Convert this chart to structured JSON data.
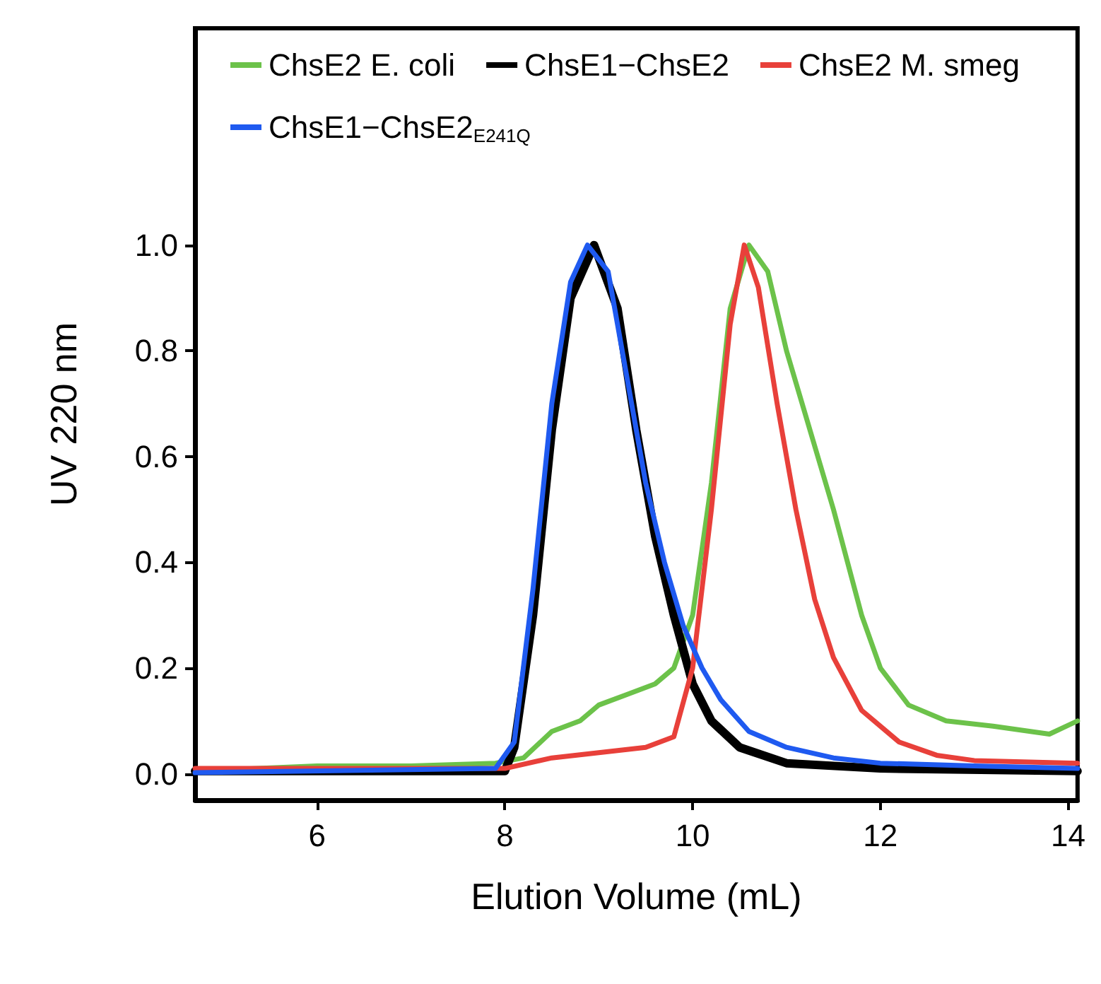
{
  "chart_data": {
    "type": "line",
    "xlabel": "Elution Volume (mL)",
    "ylabel": "UV 220 nm",
    "xlim": [
      4.7,
      14.1
    ],
    "ylim": [
      -0.05,
      1.41
    ],
    "xticks": [
      6,
      8,
      10,
      12,
      14
    ],
    "yticks": [
      {
        "value": 0,
        "label": "0.0"
      },
      {
        "value": 0.2,
        "label": "0.2"
      },
      {
        "value": 0.4,
        "label": "0.4"
      },
      {
        "value": 0.6,
        "label": "0.6"
      },
      {
        "value": 0.8,
        "label": "0.8"
      },
      {
        "value": 1,
        "label": "1.0"
      }
    ],
    "grid": false,
    "legend": "top",
    "marker": "none",
    "line_style": "solid",
    "series": [
      {
        "name": "ChsE2 E. coli",
        "color": "#6cc24a",
        "x": [
          4.7,
          6,
          7,
          7.9,
          8.2,
          8.5,
          8.8,
          9,
          9.3,
          9.6,
          9.8,
          10,
          10.2,
          10.4,
          10.6,
          10.8,
          11,
          11.2,
          11.5,
          11.8,
          12,
          12.3,
          12.7,
          13.2,
          13.8,
          14.1
        ],
        "values": [
          0.005,
          0.015,
          0.015,
          0.02,
          0.03,
          0.08,
          0.1,
          0.13,
          0.15,
          0.17,
          0.2,
          0.3,
          0.55,
          0.88,
          1,
          0.95,
          0.8,
          0.68,
          0.5,
          0.3,
          0.2,
          0.13,
          0.1,
          0.09,
          0.075,
          0.1
        ]
      },
      {
        "name": "ChsE1−ChsE2",
        "color": "#000000",
        "x": [
          4.7,
          8,
          8.1,
          8.3,
          8.5,
          8.7,
          8.95,
          9.2,
          9.4,
          9.6,
          9.8,
          10,
          10.2,
          10.5,
          11,
          12,
          14.1
        ],
        "values": [
          0.005,
          0.005,
          0.05,
          0.3,
          0.65,
          0.9,
          1,
          0.88,
          0.65,
          0.45,
          0.3,
          0.17,
          0.1,
          0.05,
          0.02,
          0.01,
          0.005
        ]
      },
      {
        "name": "ChsE2 M. smeg",
        "color": "#e8403a",
        "x": [
          4.7,
          8,
          8.5,
          9,
          9.5,
          9.8,
          10,
          10.2,
          10.4,
          10.55,
          10.7,
          10.9,
          11.1,
          11.3,
          11.5,
          11.8,
          12.2,
          12.6,
          13,
          14.1
        ],
        "values": [
          0.01,
          0.01,
          0.03,
          0.04,
          0.05,
          0.07,
          0.2,
          0.5,
          0.85,
          1,
          0.92,
          0.7,
          0.5,
          0.33,
          0.22,
          0.12,
          0.06,
          0.035,
          0.025,
          0.02
        ]
      },
      {
        "name": "ChsE1−ChsE2$_{E241Q}$",
        "color": "#1f5af0",
        "x": [
          4.7,
          7.9,
          8.1,
          8.3,
          8.5,
          8.7,
          8.88,
          9.1,
          9.3,
          9.5,
          9.7,
          9.9,
          10.1,
          10.3,
          10.6,
          11,
          11.5,
          12,
          13,
          14.1
        ],
        "values": [
          0.002,
          0.01,
          0.06,
          0.35,
          0.7,
          0.93,
          1,
          0.95,
          0.75,
          0.55,
          0.4,
          0.28,
          0.2,
          0.14,
          0.08,
          0.05,
          0.03,
          0.02,
          0.015,
          0.01
        ]
      }
    ]
  }
}
